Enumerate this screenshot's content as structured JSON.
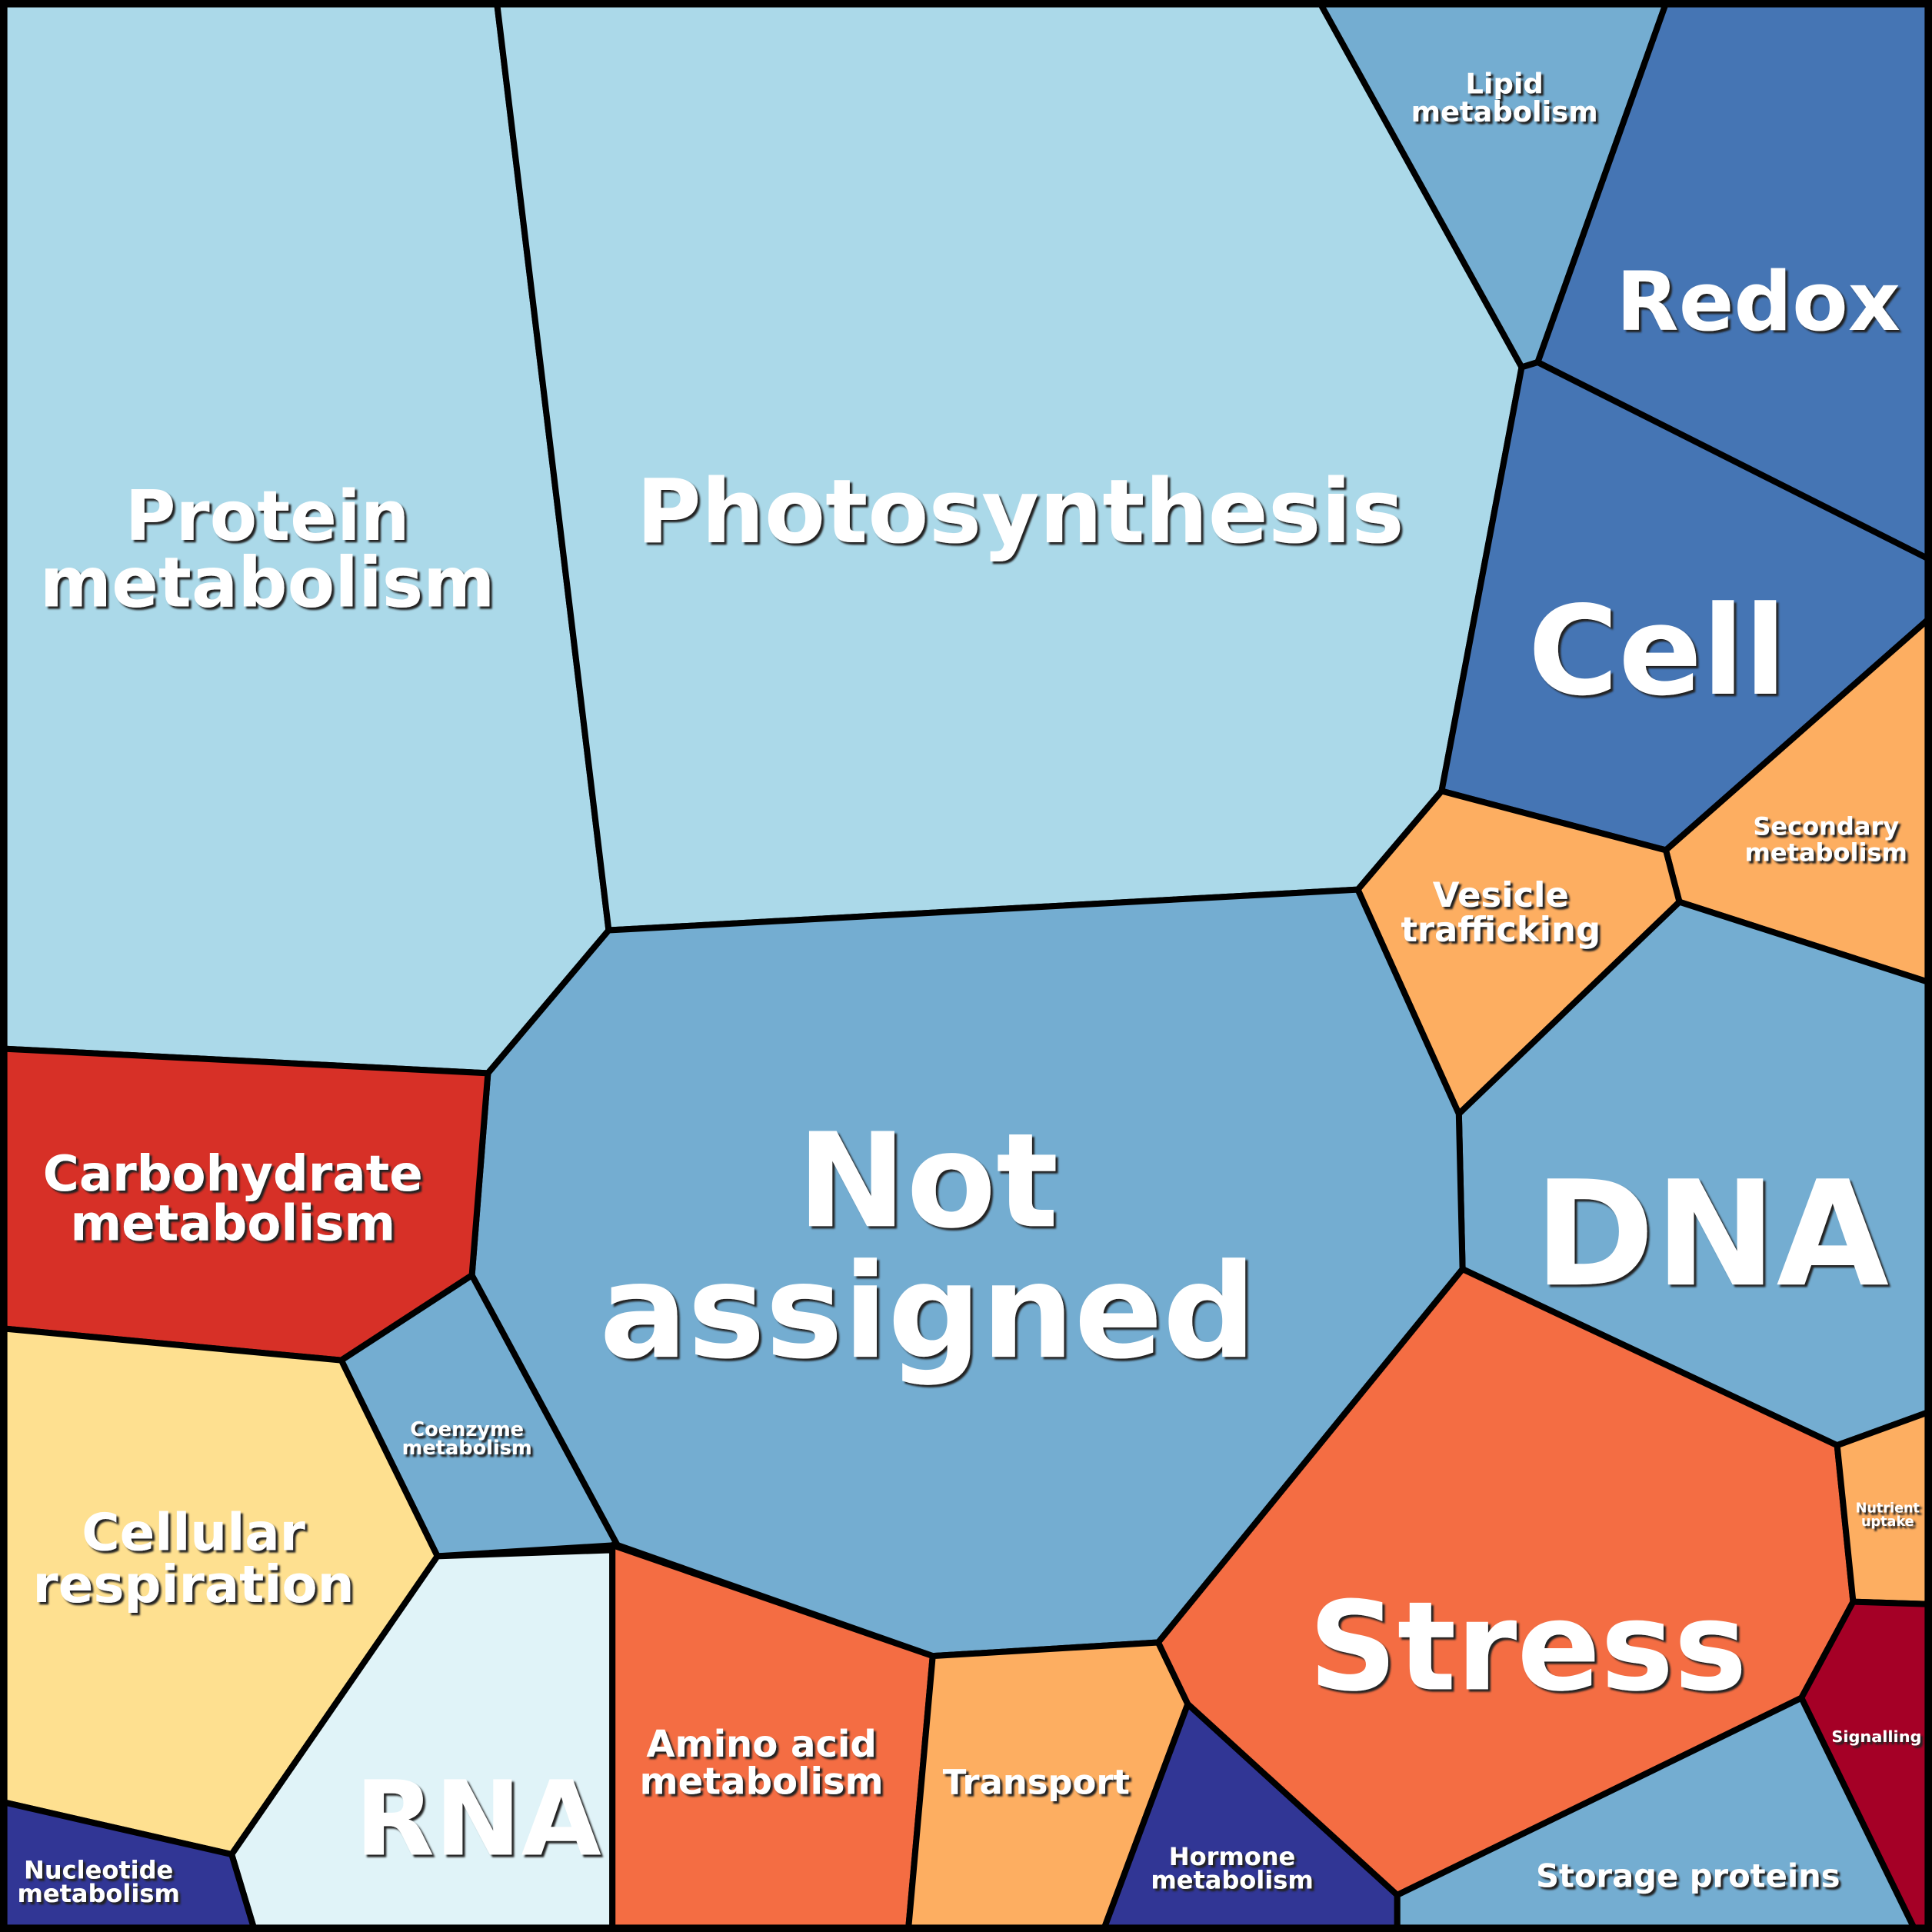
{
  "diagram": {
    "type": "voronoi-treemap",
    "regions": [
      {
        "id": "protein-metabolism",
        "lines": [
          "Protein",
          "metabolism"
        ],
        "color": "#abd9e9"
      },
      {
        "id": "photosynthesis",
        "lines": [
          "Photosynthesis"
        ],
        "color": "#abd9e9"
      },
      {
        "id": "lipid-metabolism",
        "lines": [
          "Lipid",
          "metabolism"
        ],
        "color": "#74add1"
      },
      {
        "id": "redox",
        "lines": [
          "Redox"
        ],
        "color": "#4575b4"
      },
      {
        "id": "cell",
        "lines": [
          "Cell"
        ],
        "color": "#4575b4"
      },
      {
        "id": "secondary-metabolism",
        "lines": [
          "Secondary",
          "metabolism"
        ],
        "color": "#fdae61"
      },
      {
        "id": "vesicle-trafficking",
        "lines": [
          "Vesicle",
          "trafficking"
        ],
        "color": "#fdae61"
      },
      {
        "id": "dna",
        "lines": [
          "DNA"
        ],
        "color": "#74add1"
      },
      {
        "id": "not-assigned",
        "lines": [
          "Not",
          "assigned"
        ],
        "color": "#74add1"
      },
      {
        "id": "carbohydrate-metabolism",
        "lines": [
          "Carbohydrate",
          "metabolism"
        ],
        "color": "#d73027"
      },
      {
        "id": "coenzyme-metabolism",
        "lines": [
          "Coenzyme",
          "metabolism"
        ],
        "color": "#74add1"
      },
      {
        "id": "cellular-respiration",
        "lines": [
          "Cellular",
          "respiration"
        ],
        "color": "#fee090"
      },
      {
        "id": "rna",
        "lines": [
          "RNA"
        ],
        "color": "#e0f3f8"
      },
      {
        "id": "nucleotide-metabolism",
        "lines": [
          "Nucleotide",
          "metabolism"
        ],
        "color": "#313695"
      },
      {
        "id": "amino-acid-metabolism",
        "lines": [
          "Amino acid",
          "metabolism"
        ],
        "color": "#f46d43"
      },
      {
        "id": "transport",
        "lines": [
          "Transport"
        ],
        "color": "#fdae61"
      },
      {
        "id": "hormone-metabolism",
        "lines": [
          "Hormone",
          "metabolism"
        ],
        "color": "#313695"
      },
      {
        "id": "stress",
        "lines": [
          "Stress"
        ],
        "color": "#f46d43"
      },
      {
        "id": "nutrient-uptake",
        "lines": [
          "Nutrient",
          "uptake"
        ],
        "color": "#fdae61"
      },
      {
        "id": "signalling",
        "lines": [
          "Signalling"
        ],
        "color": "#a50026"
      },
      {
        "id": "storage-proteins",
        "lines": [
          "Storage proteins"
        ],
        "color": "#74add1"
      }
    ]
  }
}
